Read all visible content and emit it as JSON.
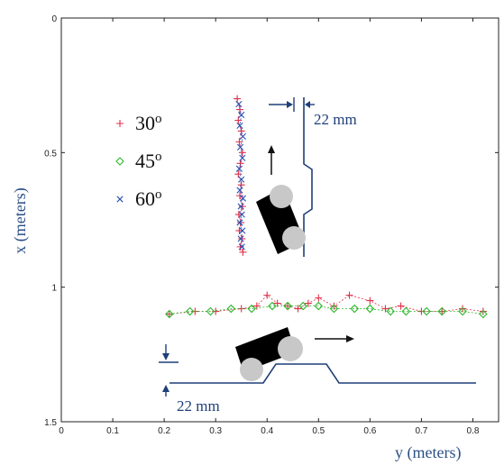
{
  "chart_data": {
    "type": "scatter",
    "xlabel": "y (meters)",
    "ylabel": "x (meters)",
    "xlim": [
      0,
      0.85
    ],
    "ylim": [
      0,
      1.5
    ],
    "y_axis_inverted": true,
    "xticks": [
      0,
      0.1,
      0.2,
      0.3,
      0.4,
      0.5,
      0.6,
      0.7,
      0.8
    ],
    "xtick_labels": [
      "0",
      "0.1",
      "0.2",
      "0.3",
      "0.4",
      "0.5",
      "0.6",
      "0.7",
      "0.8"
    ],
    "yticks": [
      0,
      0.5,
      1,
      1.5
    ],
    "ytick_labels": [
      "0",
      "0.5",
      "1",
      "1.5"
    ],
    "grid": false,
    "legend_position": "left",
    "colors": {
      "s30": "#e0304a",
      "s45": "#2eb82e",
      "s60": "#2850b4",
      "diagram": "#1f3f78"
    },
    "series": [
      {
        "name": "30o",
        "label_base": "30",
        "label_sup": "o",
        "marker": "plus",
        "segments": [
          {
            "x": [
              0.342,
              0.347,
              0.344,
              0.35,
              0.346,
              0.352,
              0.348,
              0.344,
              0.35,
              0.347,
              0.352,
              0.345,
              0.349,
              0.346,
              0.351,
              0.348,
              0.353
            ],
            "y": [
              0.3,
              0.34,
              0.38,
              0.42,
              0.46,
              0.5,
              0.54,
              0.58,
              0.62,
              0.66,
              0.7,
              0.73,
              0.76,
              0.79,
              0.82,
              0.85,
              0.87
            ]
          },
          {
            "x": [
              0.21,
              0.26,
              0.3,
              0.35,
              0.38,
              0.4,
              0.42,
              0.44,
              0.46,
              0.48,
              0.5,
              0.53,
              0.56,
              0.6,
              0.63,
              0.66,
              0.7,
              0.74,
              0.78,
              0.82
            ],
            "y": [
              1.1,
              1.09,
              1.09,
              1.08,
              1.07,
              1.03,
              1.06,
              1.07,
              1.08,
              1.06,
              1.04,
              1.07,
              1.03,
              1.05,
              1.08,
              1.07,
              1.09,
              1.09,
              1.08,
              1.09
            ]
          }
        ]
      },
      {
        "name": "45o",
        "label_base": "45",
        "label_sup": "o",
        "marker": "diamond",
        "segments": [
          {
            "x": [
              0.21,
              0.25,
              0.29,
              0.33,
              0.37,
              0.41,
              0.44,
              0.47,
              0.5,
              0.53,
              0.57,
              0.6,
              0.64,
              0.67,
              0.71,
              0.74,
              0.78,
              0.82
            ],
            "y": [
              1.1,
              1.09,
              1.09,
              1.08,
              1.08,
              1.07,
              1.07,
              1.07,
              1.07,
              1.08,
              1.08,
              1.08,
              1.09,
              1.09,
              1.09,
              1.09,
              1.09,
              1.1
            ]
          }
        ]
      },
      {
        "name": "60o",
        "label_base": "60",
        "label_sup": "o",
        "marker": "x",
        "segments": [
          {
            "x": [
              0.345,
              0.35,
              0.347,
              0.353,
              0.348,
              0.352,
              0.346,
              0.35,
              0.347,
              0.353,
              0.349,
              0.351,
              0.347,
              0.352,
              0.349,
              0.351
            ],
            "y": [
              0.32,
              0.36,
              0.4,
              0.44,
              0.48,
              0.52,
              0.56,
              0.6,
              0.64,
              0.67,
              0.7,
              0.73,
              0.76,
              0.79,
              0.82,
              0.85
            ]
          }
        ]
      }
    ],
    "annotations": [
      {
        "id": "upper_gap",
        "text": "22 mm"
      },
      {
        "id": "lower_gap",
        "text": "22 mm"
      }
    ]
  }
}
